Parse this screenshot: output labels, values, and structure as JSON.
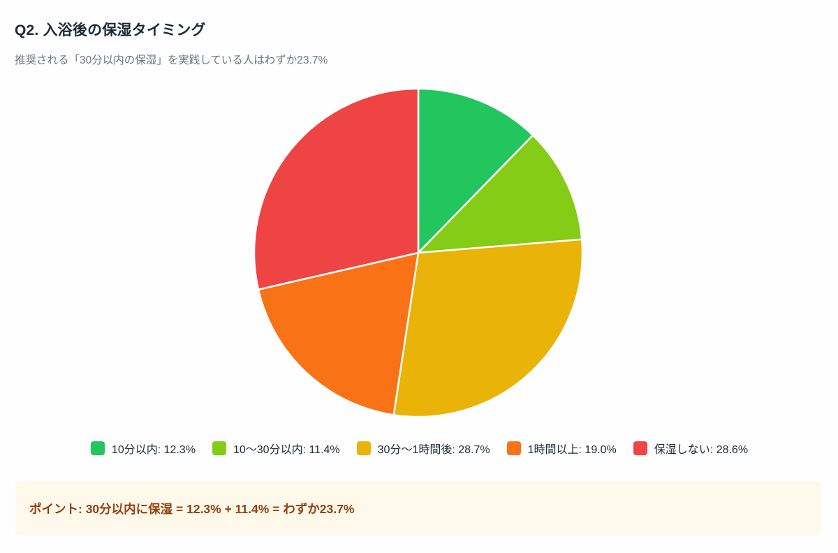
{
  "header": {
    "title": "Q2. 入浴後の保湿タイミング",
    "subtitle": "推奨される「30分以内の保湿」を実践している人はわずか23.7%"
  },
  "chart_data": {
    "type": "pie",
    "title": "Q2. 入浴後の保湿タイミング",
    "subtitle": "推奨される「30分以内の保湿」を実践している人はわずか23.7%",
    "categories": [
      "10分以内",
      "10〜30分以内",
      "30分〜1時間後",
      "1時間以上",
      "保湿しない"
    ],
    "values": [
      12.3,
      11.4,
      28.7,
      19.0,
      28.6
    ],
    "unit": "%",
    "colors": [
      "#22c55e",
      "#84cc16",
      "#eab308",
      "#f97316",
      "#ef4444"
    ],
    "start_angle_deg": -90,
    "direction": "clockwise",
    "legend_position": "bottom",
    "center": [
      599,
      362
    ],
    "radius": 235
  },
  "legend": {
    "items": [
      {
        "label": "10分以内: 12.3%",
        "color": "#22c55e"
      },
      {
        "label": "10〜30分以内: 11.4%",
        "color": "#84cc16"
      },
      {
        "label": "30分〜1時間後: 28.7%",
        "color": "#eab308"
      },
      {
        "label": "1時間以上: 19.0%",
        "color": "#f97316"
      },
      {
        "label": "保湿しない: 28.6%",
        "color": "#ef4444"
      }
    ]
  },
  "callout": {
    "text": "ポイント: 30分以内に保湿 = 12.3% + 11.4% = わずか23.7%",
    "background": "#fff9eb",
    "text_color": "#92400e"
  }
}
